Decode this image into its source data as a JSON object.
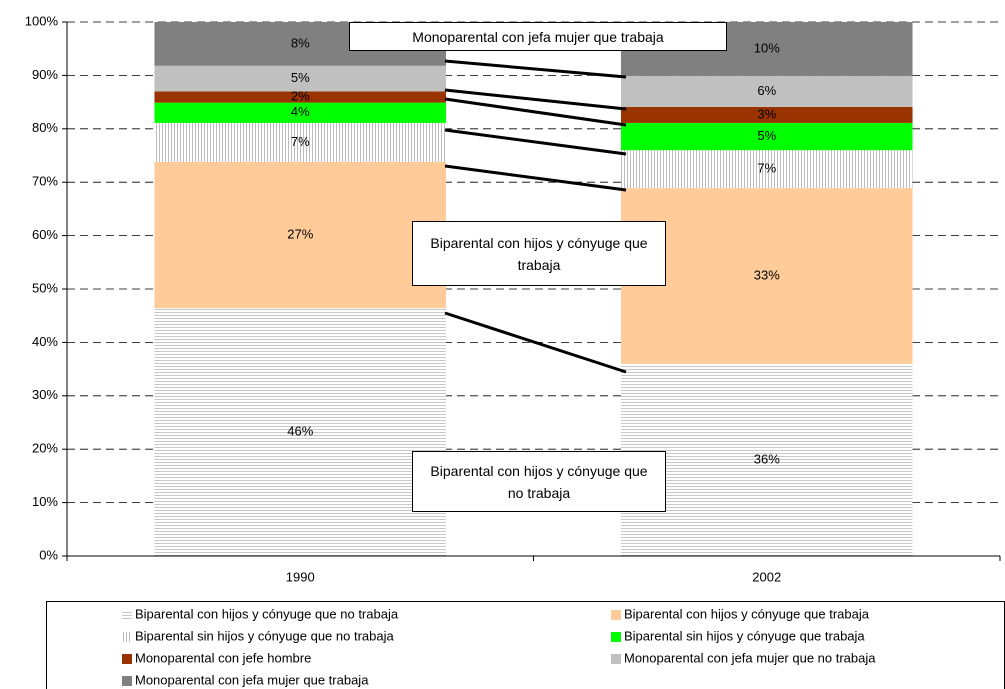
{
  "chart_data": {
    "type": "bar",
    "stacked": true,
    "categories": [
      "1990",
      "2002"
    ],
    "series": [
      {
        "name": "Biparental con hijos y cónyuge que no trabaja",
        "color": "#d4d4d4",
        "pattern": "horizontal",
        "values": [
          46.4,
          36.0
        ],
        "value_labels": [
          "46%",
          "36%"
        ]
      },
      {
        "name": "Biparental con hijos y cónyuge que trabaja",
        "color": "#ffcc99",
        "values": [
          27.4,
          32.9
        ],
        "value_labels": [
          "27%",
          "33%"
        ]
      },
      {
        "name": "Biparental sin hijos y cónyuge que no trabaja",
        "color": "#cfcfcf",
        "pattern": "vertical",
        "values": [
          7.3,
          7.1
        ],
        "value_labels": [
          "7%",
          "7%"
        ]
      },
      {
        "name": "Biparental sin hijos y cónyuge que trabaja",
        "color": "#00ff00",
        "values": [
          3.8,
          5.1
        ],
        "value_labels": [
          "4%",
          "5%"
        ]
      },
      {
        "name": "Monoparental con jefe hombre",
        "color": "#993300",
        "values": [
          2.1,
          3.0
        ],
        "value_labels": [
          "2%",
          "3%"
        ]
      },
      {
        "name": "Monoparental con jefa mujer que no trabaja",
        "color": "#c0c0c0",
        "values": [
          4.8,
          5.8
        ],
        "value_labels": [
          "5%",
          "6%"
        ]
      },
      {
        "name": "Monoparental con jefa mujer que trabaja",
        "color": "#808080",
        "values": [
          8.2,
          10.1
        ],
        "value_labels": [
          "8%",
          "10%"
        ]
      }
    ],
    "ylim": [
      0,
      100
    ],
    "yticks": [
      {
        "value": 0,
        "label": "0%"
      },
      {
        "value": 10,
        "label": "10%"
      },
      {
        "value": 20,
        "label": "20%"
      },
      {
        "value": 30,
        "label": "30%"
      },
      {
        "value": 40,
        "label": "40%"
      },
      {
        "value": 50,
        "label": "50%"
      },
      {
        "value": 60,
        "label": "60%"
      },
      {
        "value": 70,
        "label": "70%"
      },
      {
        "value": 80,
        "label": "80%"
      },
      {
        "value": 90,
        "label": "90%"
      },
      {
        "value": 100,
        "label": "100%"
      }
    ],
    "grid": true,
    "legend": "bottom",
    "annotations": [
      "Monoparental con jefa mujer que trabaja",
      "Biparental con hijos y cónyuge que trabaja",
      "Biparental con hijos y cónyuge que no trabaja"
    ]
  }
}
